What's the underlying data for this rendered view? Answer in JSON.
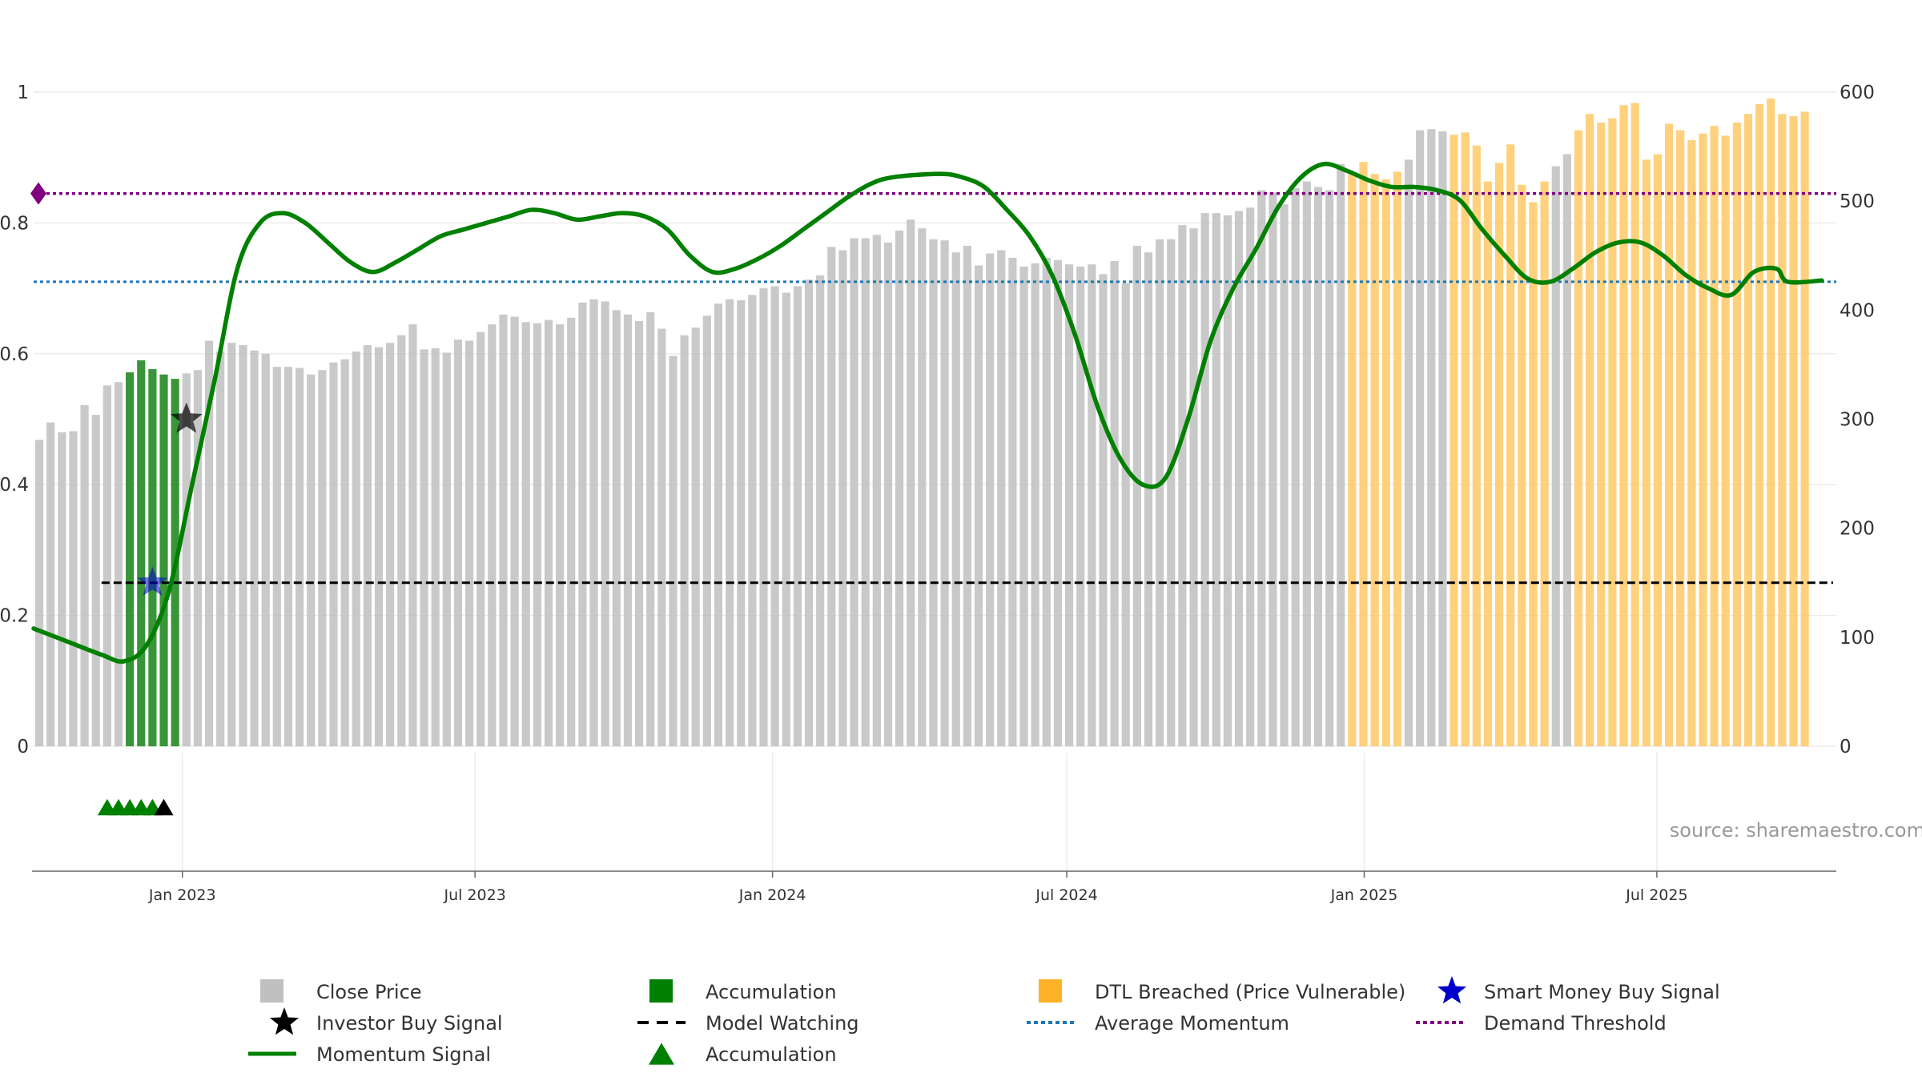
{
  "chart_data": {
    "type": "bar",
    "source": "source: sharemaestro.com",
    "left_axis": {
      "ticks": [
        "0",
        "0.2",
        "0.4",
        "0.6",
        "0.8",
        "1"
      ],
      "values": [
        0,
        0.2,
        0.4,
        0.6,
        0.8,
        1.0
      ],
      "range": [
        0,
        1
      ]
    },
    "right_axis": {
      "ticks": [
        "0",
        "100",
        "200",
        "300",
        "400",
        "500",
        "600"
      ],
      "values": [
        0,
        100,
        200,
        300,
        400,
        500,
        600
      ],
      "range": [
        0,
        600
      ]
    },
    "x_axis": {
      "range": [
        "2022-10-01",
        "2025-10-20"
      ],
      "ticks": [
        {
          "date": "2023-01-01",
          "label": "Jan 2023"
        },
        {
          "date": "2023-07-01",
          "label": "Jul 2023"
        },
        {
          "date": "2024-01-01",
          "label": "Jan 2024"
        },
        {
          "date": "2024-07-01",
          "label": "Jul 2024"
        },
        {
          "date": "2025-01-01",
          "label": "Jan 2025"
        },
        {
          "date": "2025-07-01",
          "label": "Jul 2025"
        }
      ]
    },
    "bar_dates": [
      "2022-10-01",
      "2022-10-08",
      "2022-10-15",
      "2022-10-22",
      "2022-10-29",
      "2022-11-05",
      "2022-11-12",
      "2022-11-19",
      "2022-11-26",
      "2022-12-03",
      "2022-12-10",
      "2022-12-17",
      "2022-12-24",
      "2022-12-31",
      "2023-01-07",
      "2023-01-14",
      "2023-01-21",
      "2023-01-28",
      "2023-02-04",
      "2023-02-11",
      "2023-02-18",
      "2023-02-25",
      "2023-03-04",
      "2023-03-11",
      "2023-03-18",
      "2023-03-25",
      "2023-04-01",
      "2023-04-08",
      "2023-04-15",
      "2023-04-22",
      "2023-04-29",
      "2023-05-06",
      "2023-05-13",
      "2023-05-20",
      "2023-05-27",
      "2023-06-03",
      "2023-06-10",
      "2023-06-17",
      "2023-06-24",
      "2023-07-01",
      "2023-07-08",
      "2023-07-15",
      "2023-07-22",
      "2023-07-29",
      "2023-08-05",
      "2023-08-12",
      "2023-08-19",
      "2023-08-26",
      "2023-09-02",
      "2023-09-09",
      "2023-09-16",
      "2023-09-23",
      "2023-09-30",
      "2023-10-07",
      "2023-10-14",
      "2023-10-21",
      "2023-10-28",
      "2023-11-04",
      "2023-11-11",
      "2023-11-18",
      "2023-11-25",
      "2023-12-02",
      "2023-12-09",
      "2023-12-16",
      "2023-12-23",
      "2023-12-30",
      "2024-01-06",
      "2024-01-13",
      "2024-01-20",
      "2024-01-27",
      "2024-02-03",
      "2024-02-10",
      "2024-02-17",
      "2024-02-24",
      "2024-03-02",
      "2024-03-09",
      "2024-03-16",
      "2024-03-23",
      "2024-03-30",
      "2024-04-06",
      "2024-04-13",
      "2024-04-20",
      "2024-04-27",
      "2024-05-04",
      "2024-05-11",
      "2024-05-18",
      "2024-05-25",
      "2024-06-01",
      "2024-06-08",
      "2024-06-15",
      "2024-06-22",
      "2024-06-29",
      "2024-07-06",
      "2024-07-13",
      "2024-07-20",
      "2024-07-27",
      "2024-08-03",
      "2024-08-10",
      "2024-08-17",
      "2024-08-24",
      "2024-08-31",
      "2024-09-07",
      "2024-09-14",
      "2024-09-21",
      "2024-09-28",
      "2024-10-05",
      "2024-10-12",
      "2024-10-19",
      "2024-10-26",
      "2024-11-02",
      "2024-11-09",
      "2024-11-16",
      "2024-11-23",
      "2024-11-30",
      "2024-12-07",
      "2024-12-14",
      "2024-12-21",
      "2024-12-28",
      "2025-01-04",
      "2025-01-11",
      "2025-01-18",
      "2025-01-25",
      "2025-02-01",
      "2025-02-08",
      "2025-02-15",
      "2025-02-22",
      "2025-03-01",
      "2025-03-08",
      "2025-03-15",
      "2025-03-22",
      "2025-03-29",
      "2025-04-05",
      "2025-04-12",
      "2025-04-19",
      "2025-04-26",
      "2025-05-03",
      "2025-05-10",
      "2025-05-17",
      "2025-05-24",
      "2025-05-31",
      "2025-06-07",
      "2025-06-14",
      "2025-06-21",
      "2025-06-28",
      "2025-07-05",
      "2025-07-12",
      "2025-07-19",
      "2025-07-26",
      "2025-08-02",
      "2025-08-09",
      "2025-08-16",
      "2025-08-23",
      "2025-08-30",
      "2025-09-06",
      "2025-09-13",
      "2025-09-20",
      "2025-09-27",
      "2025-10-04",
      "2025-10-11"
    ],
    "series": [
      {
        "name": "Close Price",
        "axis": "right",
        "color": "#c0c0c0",
        "values": [
          281,
          297,
          288,
          289,
          313,
          304,
          331,
          334,
          343,
          354,
          346,
          341,
          337,
          342,
          345,
          372,
          362,
          370,
          368,
          363,
          360,
          348,
          348,
          347,
          341,
          345,
          352,
          355,
          362,
          368,
          366,
          370,
          377,
          387,
          364,
          365,
          361,
          373,
          372,
          380,
          387,
          396,
          394,
          389,
          388,
          391,
          387,
          393,
          407,
          410,
          408,
          400,
          396,
          390,
          398,
          383,
          358,
          377,
          384,
          395,
          406,
          410,
          409,
          414,
          420,
          422,
          416,
          422,
          428,
          432,
          458,
          455,
          466,
          466,
          469,
          462,
          473,
          483,
          475,
          465,
          464,
          453,
          459,
          441,
          452,
          455,
          448,
          440,
          443,
          448,
          446,
          442,
          440,
          442,
          433,
          445,
          425,
          459,
          453,
          465,
          465,
          478,
          475,
          489,
          489,
          487,
          491,
          494,
          510,
          508,
          497,
          512,
          518,
          513,
          510,
          534,
          525,
          536,
          525,
          520,
          527,
          538,
          565,
          566,
          564,
          561,
          563,
          551,
          518,
          535,
          552,
          515,
          499,
          518,
          532,
          543,
          565,
          580,
          572,
          576,
          588,
          590,
          538,
          543,
          571,
          565,
          556,
          562,
          569,
          560,
          572,
          580,
          589,
          594,
          580,
          578,
          582
        ],
        "accumulation": [
          8,
          9,
          10,
          11,
          12
        ],
        "dtl_breached": [
          116,
          117,
          118,
          119,
          120,
          125,
          126,
          127,
          128,
          129,
          130,
          131,
          132,
          133,
          136,
          137,
          138,
          139,
          140,
          141,
          142,
          143,
          144,
          145,
          146,
          147,
          148,
          149,
          150,
          151,
          152,
          153,
          154,
          155,
          156,
          157,
          158,
          159,
          160,
          161,
          162,
          163,
          164
        ]
      },
      {
        "name": "Momentum Signal",
        "axis": "left",
        "color": "#008000",
        "points": [
          [
            "2022-10-01",
            0.18
          ],
          [
            "2022-10-22",
            0.16
          ],
          [
            "2022-11-12",
            0.14
          ],
          [
            "2022-11-26",
            0.13
          ],
          [
            "2022-12-10",
            0.155
          ],
          [
            "2022-12-24",
            0.24
          ],
          [
            "2023-01-07",
            0.4
          ],
          [
            "2023-01-21",
            0.56
          ],
          [
            "2023-02-04",
            0.73
          ],
          [
            "2023-02-18",
            0.8
          ],
          [
            "2023-03-04",
            0.815
          ],
          [
            "2023-03-18",
            0.8
          ],
          [
            "2023-04-01",
            0.77
          ],
          [
            "2023-04-15",
            0.74
          ],
          [
            "2023-04-29",
            0.725
          ],
          [
            "2023-05-13",
            0.74
          ],
          [
            "2023-05-27",
            0.76
          ],
          [
            "2023-06-10",
            0.78
          ],
          [
            "2023-06-24",
            0.79
          ],
          [
            "2023-07-08",
            0.8
          ],
          [
            "2023-07-22",
            0.81
          ],
          [
            "2023-08-05",
            0.82
          ],
          [
            "2023-08-19",
            0.815
          ],
          [
            "2023-09-02",
            0.805
          ],
          [
            "2023-09-16",
            0.81
          ],
          [
            "2023-09-30",
            0.815
          ],
          [
            "2023-10-14",
            0.81
          ],
          [
            "2023-10-28",
            0.79
          ],
          [
            "2023-11-11",
            0.75
          ],
          [
            "2023-11-25",
            0.725
          ],
          [
            "2023-12-09",
            0.73
          ],
          [
            "2023-12-23",
            0.745
          ],
          [
            "2024-01-06",
            0.765
          ],
          [
            "2024-01-20",
            0.79
          ],
          [
            "2024-02-03",
            0.815
          ],
          [
            "2024-02-17",
            0.84
          ],
          [
            "2024-03-02",
            0.86
          ],
          [
            "2024-03-16",
            0.87
          ],
          [
            "2024-04-13",
            0.875
          ],
          [
            "2024-04-27",
            0.87
          ],
          [
            "2024-05-11",
            0.855
          ],
          [
            "2024-05-25",
            0.82
          ],
          [
            "2024-06-08",
            0.78
          ],
          [
            "2024-06-22",
            0.72
          ],
          [
            "2024-07-06",
            0.63
          ],
          [
            "2024-07-20",
            0.52
          ],
          [
            "2024-08-03",
            0.44
          ],
          [
            "2024-08-17",
            0.4
          ],
          [
            "2024-08-31",
            0.41
          ],
          [
            "2024-09-14",
            0.5
          ],
          [
            "2024-09-28",
            0.62
          ],
          [
            "2024-10-12",
            0.7
          ],
          [
            "2024-10-26",
            0.76
          ],
          [
            "2024-11-09",
            0.825
          ],
          [
            "2024-11-23",
            0.87
          ],
          [
            "2024-12-07",
            0.89
          ],
          [
            "2024-12-21",
            0.88
          ],
          [
            "2025-01-04",
            0.865
          ],
          [
            "2025-01-18",
            0.855
          ],
          [
            "2025-02-01",
            0.855
          ],
          [
            "2025-02-15",
            0.85
          ],
          [
            "2025-03-01",
            0.835
          ],
          [
            "2025-03-15",
            0.79
          ],
          [
            "2025-03-29",
            0.75
          ],
          [
            "2025-04-12",
            0.715
          ],
          [
            "2025-04-26",
            0.71
          ],
          [
            "2025-05-10",
            0.73
          ],
          [
            "2025-05-24",
            0.755
          ],
          [
            "2025-06-07",
            0.77
          ],
          [
            "2025-06-21",
            0.77
          ],
          [
            "2025-07-05",
            0.75
          ],
          [
            "2025-07-19",
            0.72
          ],
          [
            "2025-08-02",
            0.7
          ],
          [
            "2025-08-16",
            0.69
          ],
          [
            "2025-08-30",
            0.725
          ],
          [
            "2025-09-13",
            0.73
          ],
          [
            "2025-09-20",
            0.71
          ],
          [
            "2025-10-11",
            0.712
          ]
        ]
      },
      {
        "name": "Model Watching",
        "axis": "left",
        "color": "#000000",
        "y": 0.25,
        "from": "2022-11-12",
        "to": "2025-10-11"
      },
      {
        "name": "Average Momentum",
        "axis": "left",
        "color": "#1f77b4",
        "y": 0.71
      },
      {
        "name": "Demand Threshold",
        "axis": "left",
        "color": "#800080",
        "y": 0.845
      }
    ],
    "markers": [
      {
        "name": "Investor Buy Signal",
        "date": "2022-12-31",
        "axis": "left",
        "y": 0.5,
        "color": "#000000"
      },
      {
        "name": "Smart Money Buy Signal",
        "date": "2022-12-10",
        "axis": "left",
        "y": 0.25,
        "color": "#0000cc"
      },
      {
        "name": "Demand Threshold marker",
        "date": "2022-10-01",
        "axis": "left",
        "y": 0.845,
        "color": "#800080"
      }
    ],
    "accumulation_triangles": {
      "green": [
        "2022-11-12",
        "2022-11-19",
        "2022-11-26",
        "2022-12-03",
        "2022-12-10"
      ],
      "black": [
        "2022-12-17"
      ]
    },
    "legend": {
      "placement": "bottom",
      "items": [
        {
          "label": "Close Price",
          "symbol": "square",
          "color": "#c0c0c0"
        },
        {
          "label": "Accumulation",
          "symbol": "square",
          "color": "#008000"
        },
        {
          "label": "DTL Breached (Price Vulnerable)",
          "symbol": "square",
          "color": "#ffa500"
        },
        {
          "label": "Smart Money Buy Signal",
          "symbol": "star",
          "color": "#0000cc"
        },
        {
          "label": "Investor Buy Signal",
          "symbol": "star",
          "color": "#000000"
        },
        {
          "label": "Model Watching",
          "symbol": "dash",
          "color": "#000000"
        },
        {
          "label": "Average Momentum",
          "symbol": "dot",
          "color": "#1f77b4"
        },
        {
          "label": "Demand Threshold",
          "symbol": "dot",
          "color": "#800080"
        },
        {
          "label": "Momentum Signal",
          "symbol": "line",
          "color": "#008000"
        },
        {
          "label": "Accumulation",
          "symbol": "triangle",
          "color": "#008000"
        }
      ]
    }
  }
}
